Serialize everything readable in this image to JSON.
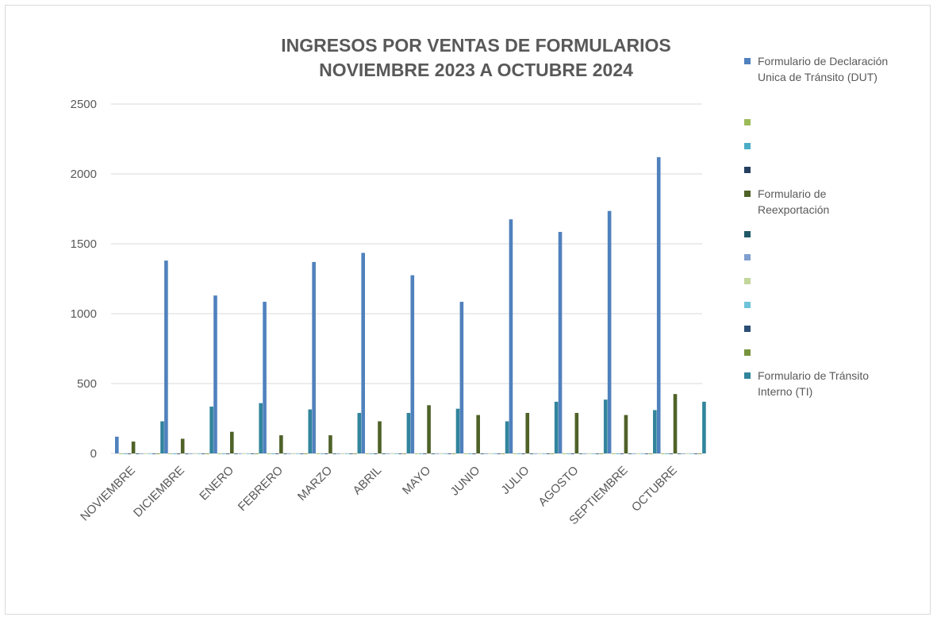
{
  "chart_data": {
    "type": "bar",
    "title": "INGRESOS POR VENTAS DE FORMULARIOS\nNOVIEMBRE 2023 A OCTUBRE 2024",
    "categories": [
      "NOVIEMBRE",
      "DICIEMBRE",
      "ENERO",
      "FEBRERO",
      "MARZO",
      "ABRIL",
      "MAYO",
      "JUNIO",
      "JULIO",
      "AGOSTO",
      "SEPTIEMBRE",
      "OCTUBRE"
    ],
    "series": [
      {
        "name": "Formulario de Declaración Unica de Tránsito (DUT)",
        "color": "#4f81bd",
        "values": [
          120,
          1380,
          1130,
          1085,
          1370,
          1435,
          1275,
          1085,
          1675,
          1585,
          1735,
          2120
        ]
      },
      {
        "color": "#9bbb59",
        "values": [
          0,
          0,
          0,
          0,
          0,
          0,
          0,
          0,
          0,
          0,
          0,
          0
        ]
      },
      {
        "color": "#4bacc6",
        "values": [
          0,
          0,
          0,
          0,
          0,
          0,
          0,
          0,
          0,
          0,
          0,
          0
        ]
      },
      {
        "color": "#243f60",
        "values": [
          0,
          0,
          0,
          0,
          0,
          0,
          0,
          0,
          0,
          0,
          0,
          0
        ]
      },
      {
        "name": "Formulario de Reexportación",
        "color": "#4f6228",
        "values": [
          85,
          105,
          155,
          130,
          130,
          230,
          345,
          275,
          290,
          290,
          275,
          425
        ]
      },
      {
        "color": "#215868",
        "values": [
          0,
          0,
          0,
          0,
          0,
          0,
          0,
          0,
          0,
          0,
          0,
          0
        ]
      },
      {
        "color": "#7f9fcf",
        "values": [
          0,
          0,
          0,
          0,
          0,
          0,
          0,
          0,
          0,
          0,
          0,
          0
        ]
      },
      {
        "color": "#c3d69b",
        "values": [
          0,
          0,
          0,
          0,
          0,
          0,
          0,
          0,
          0,
          0,
          0,
          0
        ]
      },
      {
        "color": "#6fc3d9",
        "values": [
          0,
          0,
          0,
          0,
          0,
          0,
          0,
          0,
          0,
          0,
          0,
          0
        ]
      },
      {
        "color": "#2c4d75",
        "values": [
          0,
          0,
          0,
          0,
          0,
          0,
          0,
          0,
          0,
          0,
          0,
          0
        ]
      },
      {
        "color": "#77933c",
        "values": [
          0,
          0,
          0,
          0,
          0,
          0,
          0,
          0,
          0,
          0,
          0,
          0
        ]
      },
      {
        "name": "Formulario de Tránsito Interno (TI)",
        "color": "#31859c",
        "values": [
          230,
          335,
          360,
          315,
          290,
          290,
          320,
          230,
          370,
          385,
          310,
          370
        ]
      }
    ],
    "ylim": [
      0,
      2500
    ],
    "yticks": [
      0,
      500,
      1000,
      1500,
      2000,
      2500
    ],
    "grid": true,
    "legend": "right"
  }
}
